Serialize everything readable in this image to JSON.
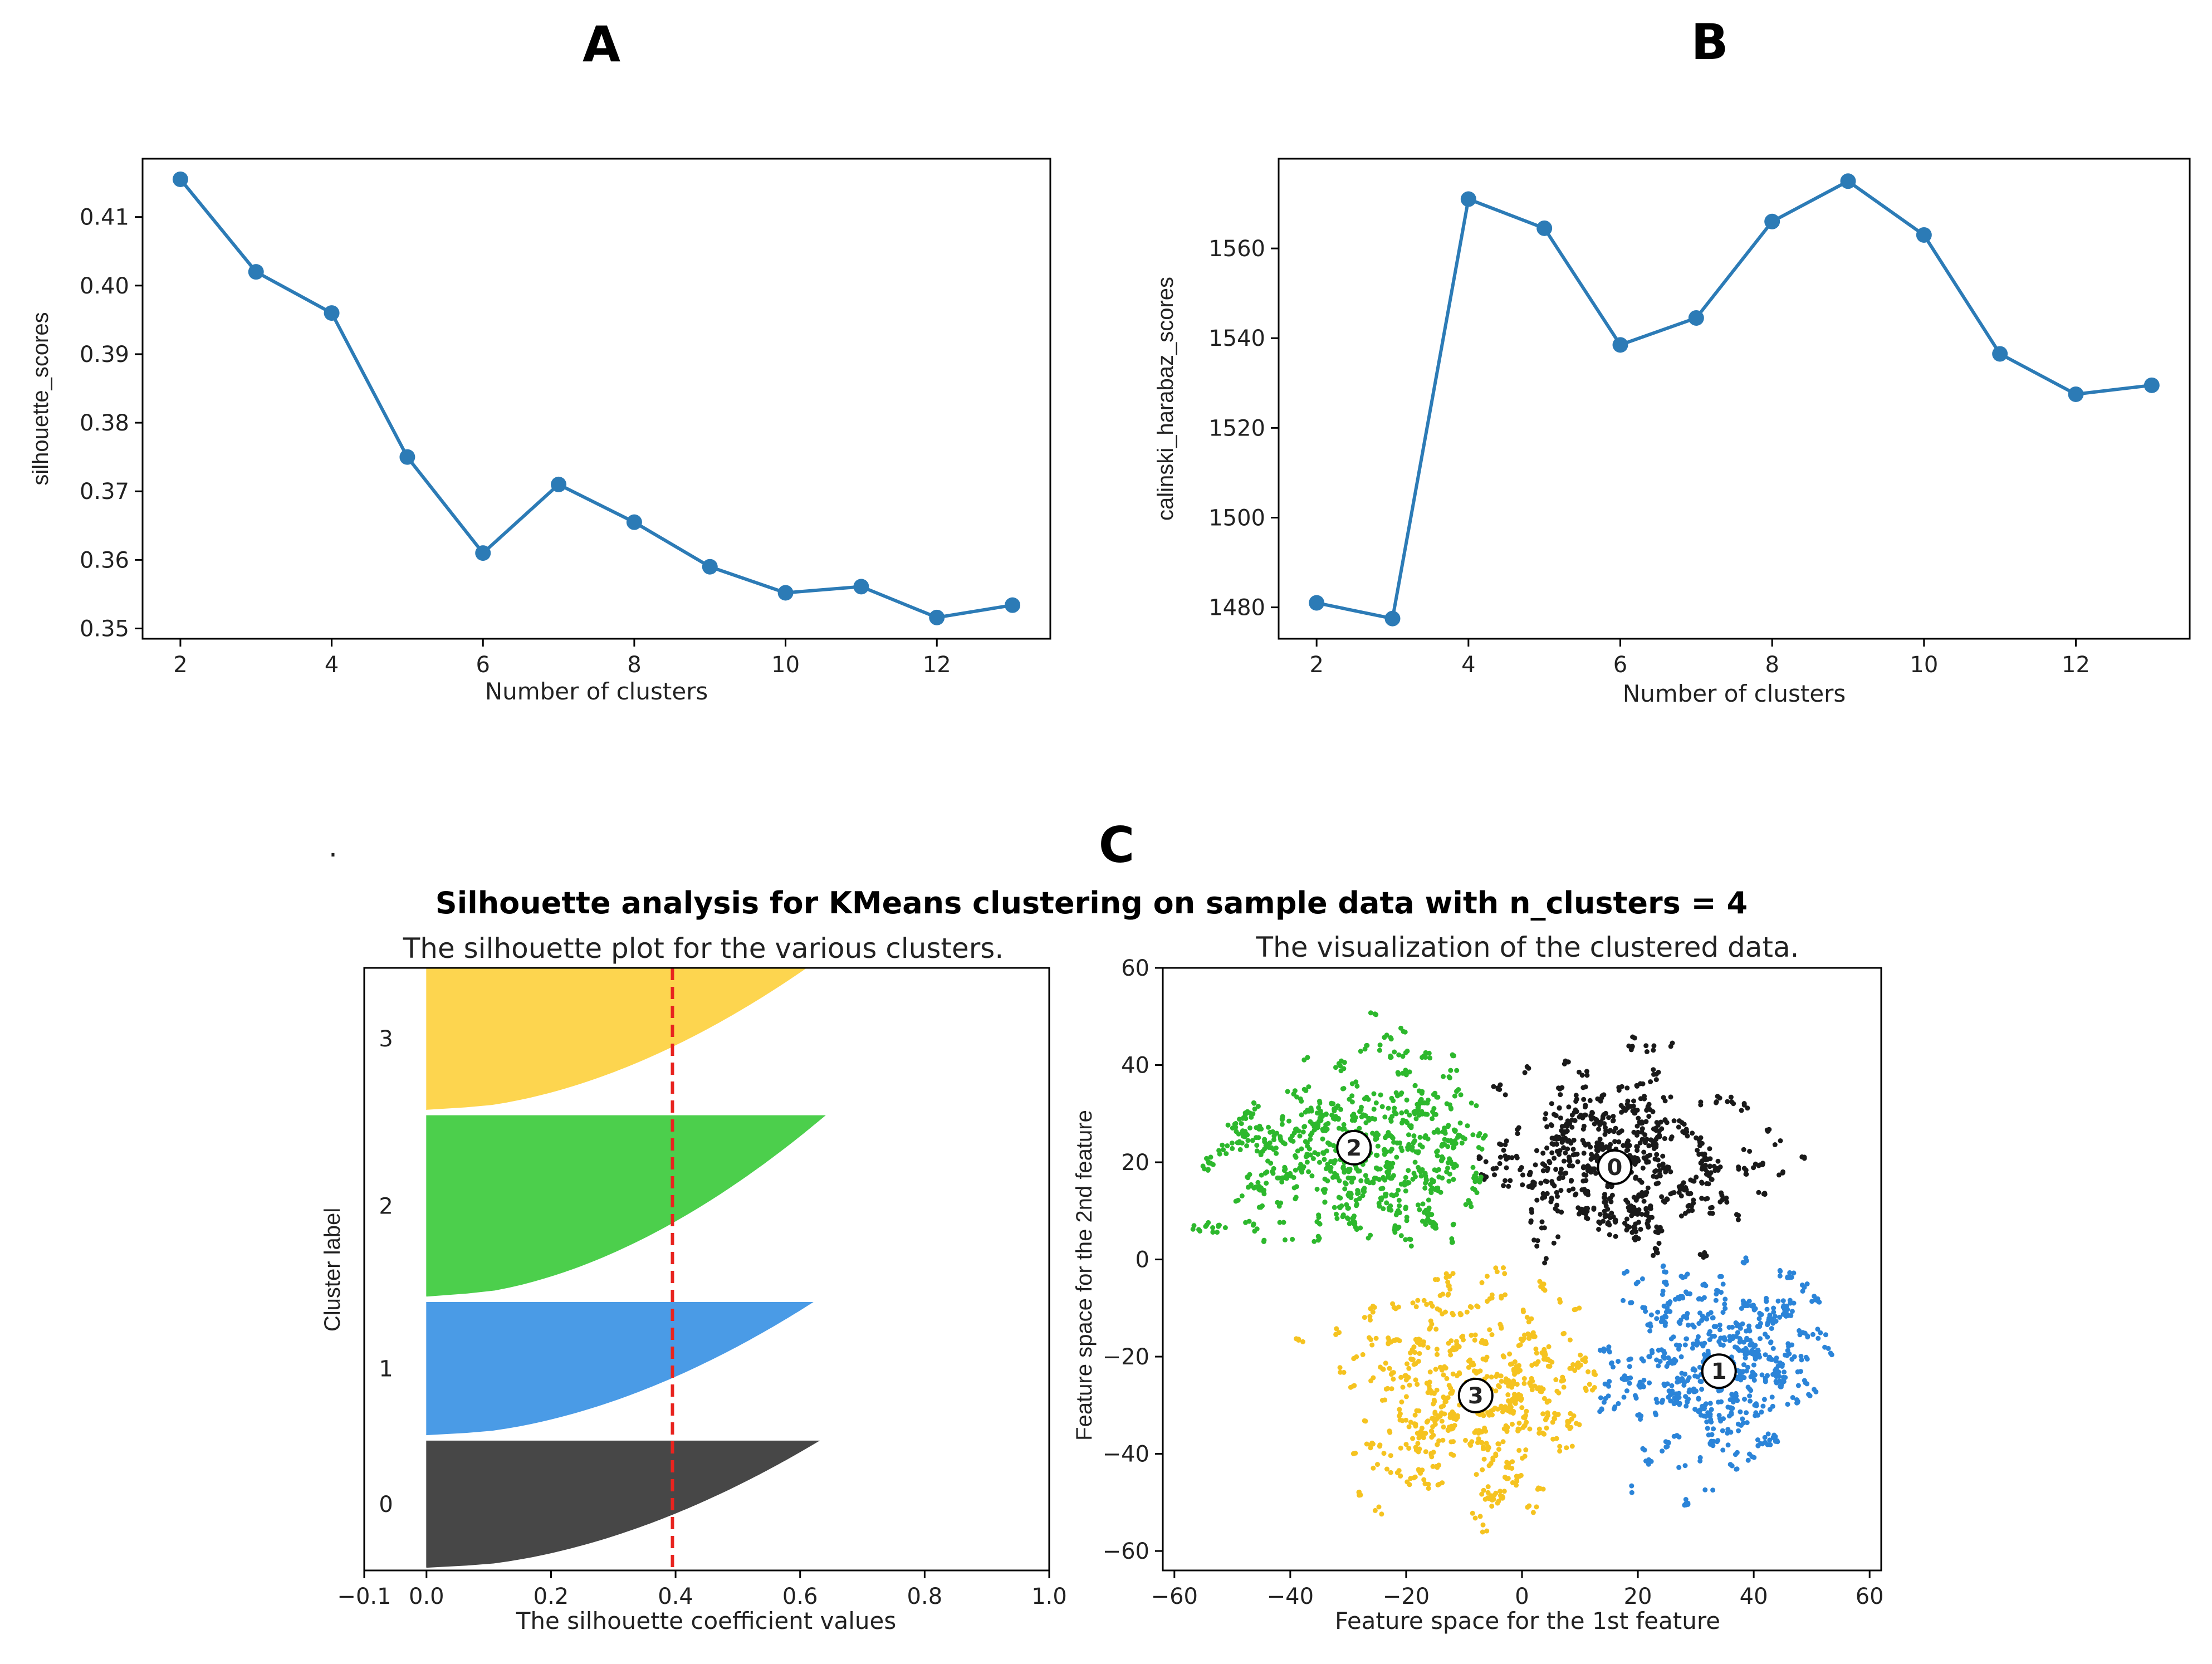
{
  "figure": {
    "panel_labels": [
      "A",
      "B",
      "C"
    ],
    "stray_mark": "."
  },
  "chart_data": [
    {
      "id": "A",
      "type": "line",
      "title": "",
      "xlabel": "Number of clusters",
      "ylabel": "silhouette_scores",
      "x": [
        2,
        3,
        4,
        5,
        6,
        7,
        8,
        9,
        10,
        11,
        12,
        13
      ],
      "y": [
        0.4155,
        0.402,
        0.396,
        0.375,
        0.361,
        0.371,
        0.3655,
        0.359,
        0.3552,
        0.3561,
        0.3516,
        0.3534
      ],
      "xlim": [
        1.5,
        13.5
      ],
      "ylim": [
        0.3485,
        0.4185
      ],
      "xticks": [
        2,
        4,
        6,
        8,
        10,
        12
      ],
      "yticks": [
        0.35,
        0.36,
        0.37,
        0.38,
        0.39,
        0.4,
        0.41
      ],
      "ytick_labels": [
        "0.35",
        "0.36",
        "0.37",
        "0.38",
        "0.39",
        "0.40",
        "0.41"
      ],
      "color": "#2c7bb6"
    },
    {
      "id": "B",
      "type": "line",
      "title": "",
      "xlabel": "Number of clusters",
      "ylabel": "calinski_harabaz_scores",
      "x": [
        2,
        3,
        4,
        5,
        6,
        7,
        8,
        9,
        10,
        11,
        12,
        13
      ],
      "y": [
        1481,
        1477.5,
        1571,
        1564.5,
        1538.5,
        1544.5,
        1566,
        1575,
        1563,
        1536.5,
        1527.5,
        1529.5
      ],
      "xlim": [
        1.5,
        13.5
      ],
      "ylim": [
        1473,
        1580
      ],
      "xticks": [
        2,
        4,
        6,
        8,
        10,
        12
      ],
      "yticks": [
        1480,
        1500,
        1520,
        1540,
        1560
      ],
      "ytick_labels": [
        "1480",
        "1500",
        "1520",
        "1540",
        "1560"
      ],
      "color": "#2c7bb6"
    },
    {
      "id": "C-left",
      "type": "area",
      "suptitle": "Silhouette analysis for KMeans clustering on sample data with n_clusters = 4",
      "title": "The silhouette plot for the various clusters.",
      "xlabel": "The silhouette coefficient values",
      "ylabel": "Cluster label",
      "xlim": [
        -0.1,
        1.0
      ],
      "ylim": [
        0,
        1000
      ],
      "xticks": [
        -0.1,
        0.0,
        0.2,
        0.4,
        0.6,
        0.8,
        1.0
      ],
      "xtick_labels": [
        "−0.1",
        "0.0",
        "0.2",
        "0.4",
        "0.6",
        "0.8",
        "1.0"
      ],
      "average_silhouette": 0.395,
      "clusters": [
        {
          "label": "0",
          "y_range": [
            5,
            215
          ],
          "max_value": 0.63,
          "color": "#474747"
        },
        {
          "label": "1",
          "y_range": [
            225,
            445
          ],
          "max_value": 0.62,
          "color": "#4a9be6"
        },
        {
          "label": "2",
          "y_range": [
            455,
            755
          ],
          "max_value": 0.64,
          "color": "#4ccf4c"
        },
        {
          "label": "3",
          "y_range": [
            765,
            1000
          ],
          "max_value": 0.61,
          "color": "#fdd54f"
        }
      ]
    },
    {
      "id": "C-right",
      "type": "scatter",
      "title": "The visualization of the clustered data.",
      "xlabel": "Feature space for the 1st feature",
      "ylabel": "Feature space for the 2nd feature",
      "xlim": [
        -62,
        62
      ],
      "ylim": [
        -64,
        60
      ],
      "xticks": [
        -60,
        -40,
        -20,
        0,
        20,
        40,
        60
      ],
      "xtick_labels": [
        "−60",
        "−40",
        "−20",
        "0",
        "20",
        "40",
        "60"
      ],
      "yticks": [
        -60,
        -40,
        -20,
        0,
        20,
        40,
        60
      ],
      "ytick_labels": [
        "−60",
        "−40",
        "−20",
        "0",
        "20",
        "40",
        "60"
      ],
      "clusters": [
        {
          "label": "0",
          "center": [
            16,
            20
          ],
          "spread": [
            22,
            16
          ],
          "n": 260,
          "color": "#1a1a1a"
        },
        {
          "label": "1",
          "center": [
            34,
            -23
          ],
          "spread": [
            20,
            22
          ],
          "n": 230,
          "color": "#2b84d8"
        },
        {
          "label": "2",
          "center": [
            -30,
            23
          ],
          "spread": [
            24,
            20
          ],
          "n": 300,
          "color": "#2db82d"
        },
        {
          "label": "3",
          "center": [
            -8,
            -28
          ],
          "spread": [
            20,
            22
          ],
          "n": 250,
          "color": "#f5c320"
        }
      ],
      "center_markers": [
        {
          "label": "0",
          "x": 16,
          "y": 19
        },
        {
          "label": "1",
          "x": 34,
          "y": -23
        },
        {
          "label": "2",
          "x": -29,
          "y": 23
        },
        {
          "label": "3",
          "x": -8,
          "y": -28
        }
      ]
    }
  ]
}
